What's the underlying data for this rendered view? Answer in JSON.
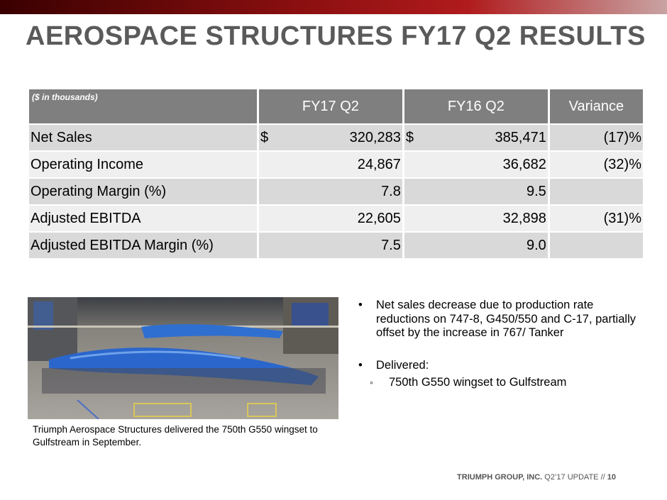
{
  "title": "AEROSPACE STRUCTURES FY17 Q2 RESULTS",
  "table": {
    "unit_note": "($ in thousands)",
    "headers": [
      "FY17 Q2",
      "FY16 Q2",
      "Variance"
    ],
    "rows": [
      {
        "label": "Net Sales",
        "fy17_cur": "$",
        "fy17": "320,283",
        "fy16_cur": "$",
        "fy16": "385,471",
        "variance": "(17)%"
      },
      {
        "label": "Operating Income",
        "fy17_cur": "",
        "fy17": "24,867",
        "fy16_cur": "",
        "fy16": "36,682",
        "variance": "(32)%"
      },
      {
        "label": "Operating Margin (%)",
        "fy17_cur": "",
        "fy17": "7.8",
        "fy16_cur": "",
        "fy16": "9.5",
        "variance": ""
      },
      {
        "label": "Adjusted EBITDA",
        "fy17_cur": "",
        "fy17": "22,605",
        "fy16_cur": "",
        "fy16": "32,898",
        "variance": "(31)%"
      },
      {
        "label": "Adjusted EBITDA Margin (%)",
        "fy17_cur": "",
        "fy17": "7.5",
        "fy16_cur": "",
        "fy16": "9.0",
        "variance": ""
      }
    ]
  },
  "photo_caption": "Triumph Aerospace Structures delivered the 750th G550 wingset to Gulfstream in September.",
  "bullets": [
    {
      "text": "Net sales decrease due to production rate reductions on 747-8, G450/550 and C-17, partially offset by the increase in 767/ Tanker"
    },
    {
      "text": "Delivered:",
      "sub": "750th G550 wingset to Gulfstream"
    }
  ],
  "footer": {
    "company": "TRIUMPH GROUP, INC.",
    "update": "Q2’17 UPDATE //",
    "page": "10"
  },
  "colors": {
    "header_bg": "#7f7f7f",
    "row_dark": "#d9d9d9",
    "row_light": "#efefef",
    "title": "#5a5a5a",
    "accent": "#8b0f10"
  }
}
